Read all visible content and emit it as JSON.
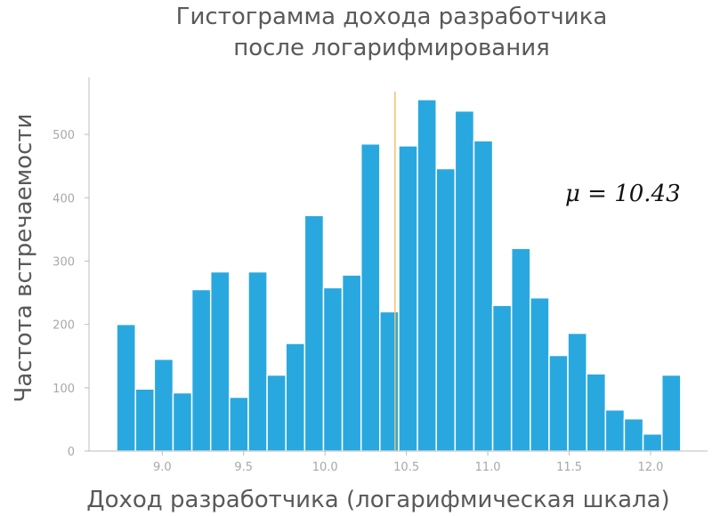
{
  "chart_data": {
    "type": "bar",
    "title_lines": [
      "Гистограмма дохода разработчика",
      "после логарифмирования"
    ],
    "xlabel": "Доход разработчика (логарифмическая шкала)",
    "ylabel": "Частота встречаемости",
    "xlim": [
      8.55,
      12.35
    ],
    "ylim": [
      0,
      590
    ],
    "x_ticks": [
      "9.0",
      "9.5",
      "10.0",
      "10.5",
      "11.0",
      "11.5",
      "12.0"
    ],
    "y_ticks": [
      "0",
      "100",
      "200",
      "300",
      "400",
      "500"
    ],
    "x_tick_values": [
      9.0,
      9.5,
      10.0,
      10.5,
      11.0,
      11.5,
      12.0
    ],
    "y_tick_values": [
      0,
      100,
      200,
      300,
      400,
      500
    ],
    "bin_start": 8.72,
    "bin_width": 0.1155,
    "values": [
      200,
      98,
      145,
      92,
      255,
      283,
      85,
      283,
      120,
      170,
      372,
      258,
      278,
      485,
      220,
      482,
      555,
      446,
      537,
      490,
      230,
      320,
      242,
      151,
      186,
      122,
      65,
      51,
      27,
      120
    ],
    "mean_line": {
      "x": 10.43,
      "color": "#f0c070"
    },
    "annotation": "μ = 10.43",
    "bar_color": "#29a8e0",
    "grid": false
  }
}
